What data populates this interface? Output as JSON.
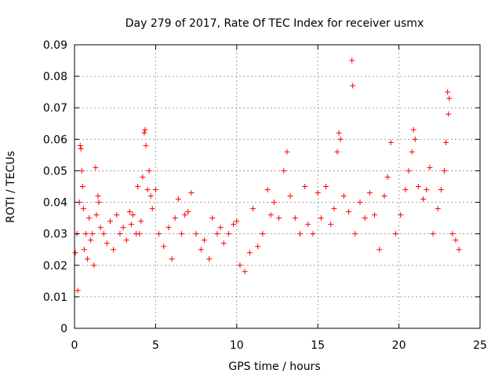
{
  "chart_data": {
    "type": "scatter",
    "title": "Day 279 of 2017, Rate Of TEC Index for receiver usmx",
    "xlabel": "GPS time / hours",
    "ylabel": "ROTI / TECUs",
    "xlim": [
      0,
      25
    ],
    "ylim": [
      0,
      0.09
    ],
    "xticks": [
      "0",
      "5",
      "10",
      "15",
      "20",
      "25"
    ],
    "yticks": [
      "0",
      "0.01",
      "0.02",
      "0.03",
      "0.04",
      "0.05",
      "0.06",
      "0.07",
      "0.08",
      "0.09"
    ],
    "grid": true,
    "marker": "+",
    "colors": {
      "series": "#ff0000",
      "grid": "#a0a0a0",
      "axes": "#000000"
    },
    "series": [
      {
        "values": [
          [
            0.05,
            0.024
          ],
          [
            0.15,
            0.03
          ],
          [
            0.2,
            0.012
          ],
          [
            0.3,
            0.04
          ],
          [
            0.35,
            0.058
          ],
          [
            0.4,
            0.057
          ],
          [
            0.45,
            0.05
          ],
          [
            0.5,
            0.045
          ],
          [
            0.55,
            0.038
          ],
          [
            0.6,
            0.025
          ],
          [
            0.7,
            0.03
          ],
          [
            0.8,
            0.022
          ],
          [
            0.9,
            0.035
          ],
          [
            1.0,
            0.028
          ],
          [
            1.1,
            0.03
          ],
          [
            1.2,
            0.02
          ],
          [
            1.3,
            0.051
          ],
          [
            1.35,
            0.036
          ],
          [
            1.45,
            0.042
          ],
          [
            1.5,
            0.04
          ],
          [
            1.6,
            0.032
          ],
          [
            1.8,
            0.03
          ],
          [
            2.0,
            0.027
          ],
          [
            2.2,
            0.034
          ],
          [
            2.4,
            0.025
          ],
          [
            2.6,
            0.036
          ],
          [
            2.8,
            0.03
          ],
          [
            3.0,
            0.032
          ],
          [
            3.2,
            0.028
          ],
          [
            3.4,
            0.037
          ],
          [
            3.5,
            0.033
          ],
          [
            3.6,
            0.036
          ],
          [
            3.8,
            0.03
          ],
          [
            3.9,
            0.045
          ],
          [
            4.0,
            0.03
          ],
          [
            4.1,
            0.034
          ],
          [
            4.2,
            0.048
          ],
          [
            4.3,
            0.062
          ],
          [
            4.35,
            0.063
          ],
          [
            4.4,
            0.058
          ],
          [
            4.5,
            0.044
          ],
          [
            4.6,
            0.05
          ],
          [
            4.7,
            0.042
          ],
          [
            4.8,
            0.038
          ],
          [
            5.0,
            0.044
          ],
          [
            5.2,
            0.03
          ],
          [
            5.5,
            0.026
          ],
          [
            5.8,
            0.032
          ],
          [
            6.0,
            0.022
          ],
          [
            6.2,
            0.035
          ],
          [
            6.4,
            0.041
          ],
          [
            6.6,
            0.03
          ],
          [
            6.8,
            0.036
          ],
          [
            7.0,
            0.037
          ],
          [
            7.2,
            0.043
          ],
          [
            7.5,
            0.03
          ],
          [
            7.8,
            0.025
          ],
          [
            8.0,
            0.028
          ],
          [
            8.3,
            0.022
          ],
          [
            8.5,
            0.035
          ],
          [
            8.8,
            0.03
          ],
          [
            9.0,
            0.032
          ],
          [
            9.2,
            0.027
          ],
          [
            9.5,
            0.03
          ],
          [
            9.8,
            0.033
          ],
          [
            10.0,
            0.034
          ],
          [
            10.2,
            0.02
          ],
          [
            10.5,
            0.018
          ],
          [
            10.8,
            0.024
          ],
          [
            11.0,
            0.038
          ],
          [
            11.3,
            0.026
          ],
          [
            11.6,
            0.03
          ],
          [
            11.9,
            0.044
          ],
          [
            12.1,
            0.036
          ],
          [
            12.3,
            0.04
          ],
          [
            12.6,
            0.035
          ],
          [
            12.9,
            0.05
          ],
          [
            13.1,
            0.056
          ],
          [
            13.3,
            0.042
          ],
          [
            13.6,
            0.035
          ],
          [
            13.9,
            0.03
          ],
          [
            14.2,
            0.045
          ],
          [
            14.4,
            0.033
          ],
          [
            14.7,
            0.03
          ],
          [
            15.0,
            0.043
          ],
          [
            15.2,
            0.035
          ],
          [
            15.5,
            0.045
          ],
          [
            15.8,
            0.033
          ],
          [
            16.0,
            0.038
          ],
          [
            16.2,
            0.056
          ],
          [
            16.3,
            0.062
          ],
          [
            16.4,
            0.06
          ],
          [
            16.6,
            0.042
          ],
          [
            16.9,
            0.037
          ],
          [
            17.1,
            0.085
          ],
          [
            17.15,
            0.077
          ],
          [
            17.3,
            0.03
          ],
          [
            17.6,
            0.04
          ],
          [
            17.9,
            0.035
          ],
          [
            18.2,
            0.043
          ],
          [
            18.5,
            0.036
          ],
          [
            18.8,
            0.025
          ],
          [
            19.1,
            0.042
          ],
          [
            19.3,
            0.048
          ],
          [
            19.5,
            0.059
          ],
          [
            19.8,
            0.03
          ],
          [
            20.1,
            0.036
          ],
          [
            20.4,
            0.044
          ],
          [
            20.6,
            0.05
          ],
          [
            20.8,
            0.056
          ],
          [
            20.9,
            0.063
          ],
          [
            21.0,
            0.06
          ],
          [
            21.2,
            0.045
          ],
          [
            21.5,
            0.041
          ],
          [
            21.7,
            0.044
          ],
          [
            21.9,
            0.051
          ],
          [
            22.1,
            0.03
          ],
          [
            22.4,
            0.038
          ],
          [
            22.6,
            0.044
          ],
          [
            22.8,
            0.05
          ],
          [
            22.9,
            0.059
          ],
          [
            23.0,
            0.075
          ],
          [
            23.05,
            0.068
          ],
          [
            23.1,
            0.073
          ],
          [
            23.3,
            0.03
          ],
          [
            23.5,
            0.028
          ],
          [
            23.7,
            0.025
          ]
        ]
      }
    ]
  }
}
